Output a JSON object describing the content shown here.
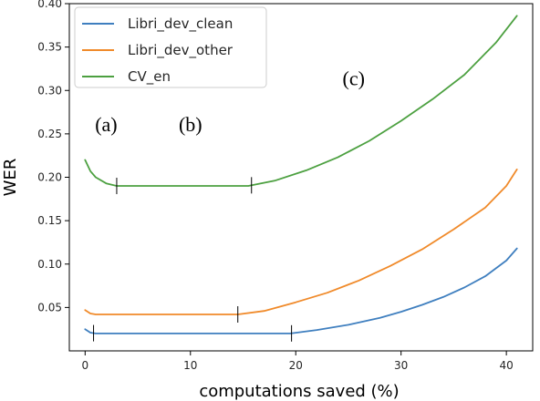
{
  "chart_data": {
    "type": "line",
    "xlabel": "computations saved (%)",
    "ylabel": "WER",
    "xlim": [
      -1.5,
      42.5
    ],
    "ylim": [
      0.0,
      0.4
    ],
    "xticks": [
      0,
      10,
      20,
      30,
      40
    ],
    "yticks": [
      0.05,
      0.1,
      0.15,
      0.2,
      0.25,
      0.3,
      0.35,
      0.4
    ],
    "xtick_labels": [
      "0",
      "10",
      "20",
      "30",
      "40"
    ],
    "ytick_labels": [
      "0.05",
      "0.10",
      "0.15",
      "0.20",
      "0.25",
      "0.30",
      "0.35",
      "0.40"
    ],
    "grid": false,
    "legend_position": "upper-left",
    "series": [
      {
        "name": "Libri_dev_clean",
        "color": "#3f7fbf",
        "x": [
          0,
          0.5,
          1,
          2,
          5,
          10,
          15,
          19.5,
          22,
          25,
          28,
          30,
          32,
          34,
          36,
          38,
          40,
          41
        ],
        "y": [
          0.025,
          0.021,
          0.02,
          0.02,
          0.02,
          0.02,
          0.02,
          0.02,
          0.024,
          0.03,
          0.038,
          0.045,
          0.053,
          0.062,
          0.073,
          0.086,
          0.104,
          0.118
        ]
      },
      {
        "name": "Libri_dev_other",
        "color": "#f08a2a",
        "x": [
          0,
          0.5,
          1,
          2,
          5,
          10,
          14.5,
          17,
          20,
          23,
          26,
          29,
          32,
          35,
          38,
          40,
          41
        ],
        "y": [
          0.047,
          0.043,
          0.042,
          0.042,
          0.042,
          0.042,
          0.042,
          0.046,
          0.056,
          0.067,
          0.081,
          0.098,
          0.117,
          0.14,
          0.165,
          0.19,
          0.209
        ]
      },
      {
        "name": "CV_en",
        "color": "#4ca040",
        "x": [
          0,
          0.5,
          1,
          2,
          3,
          5,
          10,
          15.5,
          18,
          21,
          24,
          27,
          30,
          33,
          36,
          39,
          41
        ],
        "y": [
          0.22,
          0.207,
          0.2,
          0.193,
          0.19,
          0.19,
          0.19,
          0.19,
          0.196,
          0.208,
          0.223,
          0.242,
          0.265,
          0.29,
          0.318,
          0.355,
          0.386
        ]
      }
    ],
    "segment_markers": [
      {
        "series": "CV_en",
        "x": 3
      },
      {
        "series": "CV_en",
        "x": 15.8
      },
      {
        "series": "Libri_dev_other",
        "x": 14.5
      },
      {
        "series": "Libri_dev_clean",
        "x": 0.8
      },
      {
        "series": "Libri_dev_clean",
        "x": 19.6
      }
    ],
    "annotations": [
      {
        "text": "(a)",
        "x": 2,
        "y": 0.253
      },
      {
        "text": "(b)",
        "x": 10,
        "y": 0.253
      },
      {
        "text": "(c)",
        "x": 25.5,
        "y": 0.306
      }
    ]
  }
}
